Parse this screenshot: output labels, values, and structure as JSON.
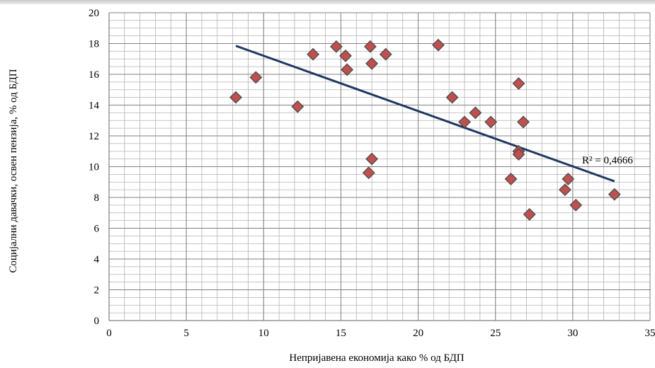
{
  "chart_data": {
    "type": "scatter",
    "title": "",
    "xlabel": "Непријавена економија како % од БДП",
    "ylabel": "Социјални давачки, освен пензија, % од БДП",
    "xlim": [
      0,
      35
    ],
    "ylim": [
      0,
      20
    ],
    "x_ticks": [
      "0",
      "5",
      "10",
      "15",
      "20",
      "25",
      "30",
      "35"
    ],
    "y_ticks": [
      "0",
      "2",
      "4",
      "6",
      "8",
      "10",
      "12",
      "14",
      "16",
      "18",
      "20"
    ],
    "grid": "major and minor",
    "marker_color": "#c0504d",
    "trend_color": "#1f3864",
    "points": [
      {
        "x": 8.2,
        "y": 14.5
      },
      {
        "x": 9.5,
        "y": 15.8
      },
      {
        "x": 12.2,
        "y": 13.9
      },
      {
        "x": 13.2,
        "y": 17.3
      },
      {
        "x": 14.7,
        "y": 17.8
      },
      {
        "x": 15.3,
        "y": 17.2
      },
      {
        "x": 15.4,
        "y": 16.3
      },
      {
        "x": 16.9,
        "y": 17.8
      },
      {
        "x": 17.0,
        "y": 16.7
      },
      {
        "x": 17.9,
        "y": 17.3
      },
      {
        "x": 16.8,
        "y": 9.6
      },
      {
        "x": 17.0,
        "y": 10.5
      },
      {
        "x": 21.3,
        "y": 17.9
      },
      {
        "x": 22.2,
        "y": 14.5
      },
      {
        "x": 23.0,
        "y": 12.9
      },
      {
        "x": 23.7,
        "y": 13.5
      },
      {
        "x": 24.7,
        "y": 12.9
      },
      {
        "x": 26.0,
        "y": 9.2
      },
      {
        "x": 26.5,
        "y": 15.4
      },
      {
        "x": 26.5,
        "y": 11.0
      },
      {
        "x": 26.5,
        "y": 10.8
      },
      {
        "x": 26.8,
        "y": 12.9
      },
      {
        "x": 27.2,
        "y": 6.9
      },
      {
        "x": 29.5,
        "y": 8.5
      },
      {
        "x": 29.7,
        "y": 9.2
      },
      {
        "x": 30.2,
        "y": 7.5
      },
      {
        "x": 32.7,
        "y": 8.2
      }
    ],
    "trendline": {
      "x": [
        8.2,
        32.7
      ],
      "y": [
        17.85,
        9.05
      ],
      "label": "R² = 0,4666"
    }
  }
}
